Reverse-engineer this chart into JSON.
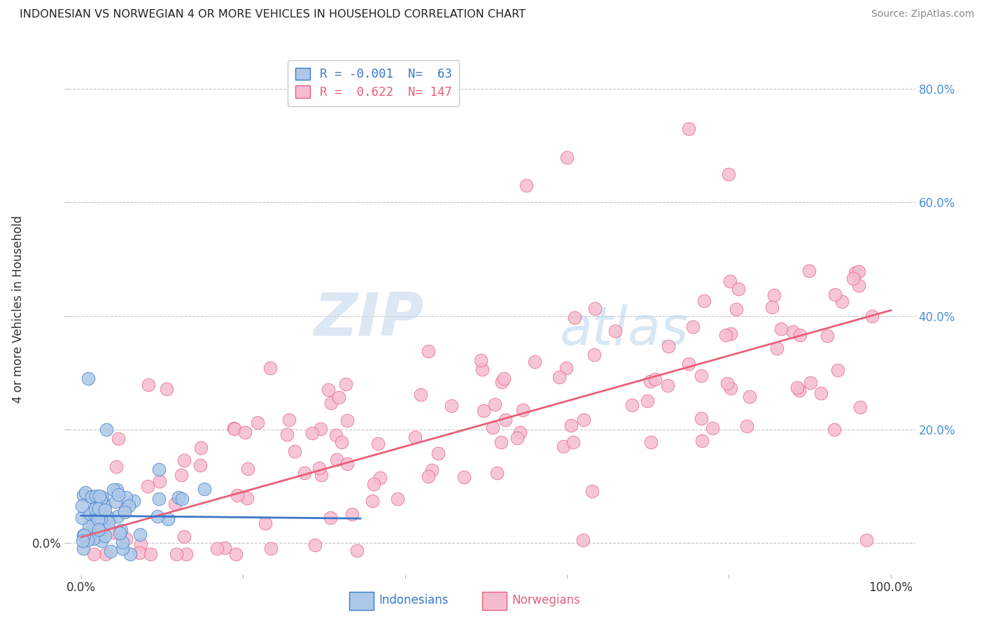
{
  "title": "INDONESIAN VS NORWEGIAN 4 OR MORE VEHICLES IN HOUSEHOLD CORRELATION CHART",
  "source": "Source: ZipAtlas.com",
  "ylabel": "4 or more Vehicles in Household",
  "indonesian_color": "#adc8e8",
  "norwegian_color": "#f5bcd0",
  "indonesian_line_color": "#3a78c9",
  "norwegian_line_color": "#e8607a",
  "right_axis_color": "#4a90d9",
  "watermark_color": "#d0dff0",
  "background_color": "#ffffff",
  "grid_color": "#c8c8c8",
  "indonesian_R": -0.001,
  "indonesian_N": 63,
  "norwegian_R": 0.622,
  "norwegian_N": 147
}
